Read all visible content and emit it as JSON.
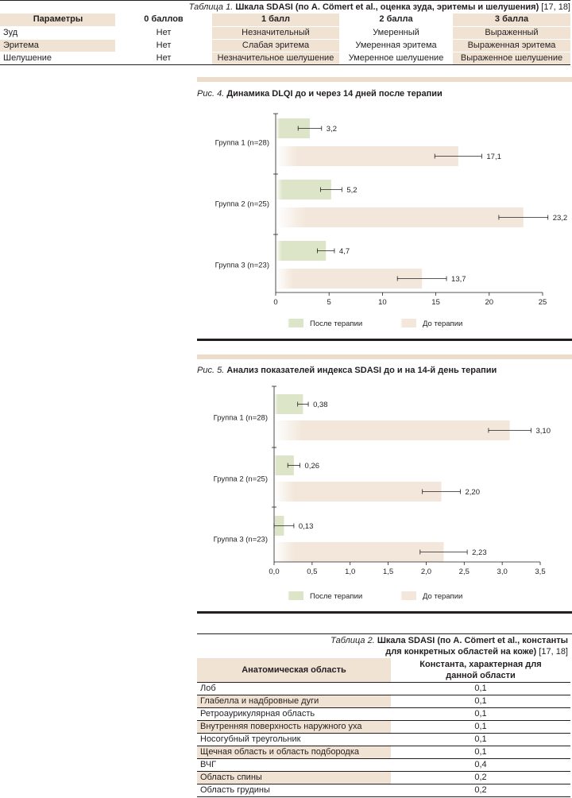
{
  "table1": {
    "caption": {
      "label": "Таблица 1.",
      "title": "Шкала SDASI (по A. Cömert et al., оценка зуда, эритемы и шелушения)",
      "ref": "[17, 18]"
    },
    "headers": [
      "Параметры",
      "0 баллов",
      "1 балл",
      "2 балла",
      "3 балла"
    ],
    "rows": [
      [
        "Зуд",
        "Нет",
        "Незначительный",
        "Умеренный",
        "Выраженный"
      ],
      [
        "Эритема",
        "Нет",
        "Слабая эритема",
        "Умеренная эритема",
        "Выраженная эритема"
      ],
      [
        "Шелушение",
        "Нет",
        "Незначительное шелушение",
        "Умеренное шелушение",
        "Выраженное шелушение"
      ]
    ]
  },
  "figure4": {
    "label": "Рис. 4.",
    "title": "Динамика DLQI до и через 14 дней после терапии"
  },
  "figure5": {
    "label": "Рис. 5.",
    "title": "Анализ показателей индекса SDASI до и на 14-й день терапии"
  },
  "chart_data": [
    {
      "type": "bar",
      "orientation": "horizontal",
      "title": "Динамика DLQI до и через 14 дней после терапии",
      "categories": [
        "Группа 1 (n=28)",
        "Группа 2 (n=25)",
        "Группа 3 (n=23)"
      ],
      "series": [
        {
          "name": "После терапии",
          "values": [
            3.2,
            5.2,
            4.7
          ],
          "value_labels": [
            "3,2",
            "5,2",
            "4,7"
          ],
          "errors": [
            1.1,
            1.0,
            0.8
          ],
          "color": "#dde5c8"
        },
        {
          "name": "До терапии",
          "values": [
            17.1,
            23.2,
            13.7
          ],
          "value_labels": [
            "17,1",
            "23,2",
            "13,7"
          ],
          "errors": [
            2.2,
            2.3,
            2.3
          ],
          "color": "#f2e7da"
        }
      ],
      "xlim": [
        0,
        25
      ],
      "xticks": [
        0,
        5,
        10,
        15,
        20,
        25
      ],
      "xtick_labels": [
        "0",
        "5",
        "10",
        "15",
        "20",
        "25"
      ],
      "legend": "bottom"
    },
    {
      "type": "bar",
      "orientation": "horizontal",
      "title": "Анализ показателей индекса SDASI до и на 14-й день терапии",
      "categories": [
        "Группа 1 (n=28)",
        "Группа 2 (n=25)",
        "Группа 3 (n=23)"
      ],
      "series": [
        {
          "name": "После терапии",
          "values": [
            0.38,
            0.26,
            0.13
          ],
          "value_labels": [
            "0,38",
            "0,26",
            "0,13"
          ],
          "errors": [
            0.07,
            0.08,
            0.13
          ],
          "color": "#dde5c8"
        },
        {
          "name": "До терапии",
          "values": [
            3.1,
            2.2,
            2.23
          ],
          "value_labels": [
            "3,10",
            "2,20",
            "2,23"
          ],
          "errors": [
            0.28,
            0.25,
            0.31
          ],
          "color": "#f2e7da"
        }
      ],
      "xlim": [
        0,
        3.5
      ],
      "xticks": [
        0,
        0.5,
        1.0,
        1.5,
        2.0,
        2.5,
        3.0,
        3.5
      ],
      "xtick_labels": [
        "0,0",
        "0,5",
        "1,0",
        "1,5",
        "2,0",
        "2,5",
        "3,0",
        "3,5"
      ],
      "legend": "bottom"
    }
  ],
  "table2": {
    "caption": {
      "label": "Таблица 2.",
      "title_line1": "Шкала SDASI (по A. Cömert et al., константы",
      "title_line2": "для конкретных областей на коже)",
      "ref": "[17, 18]"
    },
    "headers": [
      "Анатомическая область",
      "Константа, характерная для данной области"
    ],
    "rows": [
      [
        "Лоб",
        "0,1"
      ],
      [
        "Глабелла и надбровные дуги",
        "0,1"
      ],
      [
        "Ретроаурикулярная область",
        "0,1"
      ],
      [
        "Внутренняя поверхность наружного уха",
        "0,1"
      ],
      [
        "Носогубный треугольник",
        "0,1"
      ],
      [
        "Щечная область и область подбородка",
        "0,1"
      ],
      [
        "ВЧГ",
        "0,4"
      ],
      [
        "Область спины",
        "0,2"
      ],
      [
        "Область грудины",
        "0,2"
      ]
    ]
  }
}
